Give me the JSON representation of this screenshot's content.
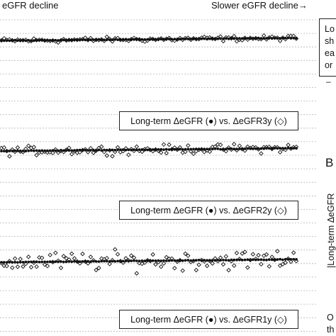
{
  "header": {
    "left": "eGFR decline",
    "right": "Slower eGFR decline→"
  },
  "side": {
    "callout_lines": [
      "Lo",
      "sh",
      "ea",
      "or"
    ],
    "tick": "–",
    "panel_letter": "B",
    "vertical_label": "|Long-term ΔeGFR",
    "bottom_lines": [
      "O",
      "th"
    ]
  },
  "chart_data": [
    {
      "type": "scatter",
      "legend": "Long-term ΔeGFR (●) vs. ΔeGFR3y (◇)",
      "series": [
        {
          "name": "Long-term ΔeGFR",
          "marker": "filled-circle",
          "trend": {
            "start": 0.3,
            "end": 0.7
          }
        },
        {
          "name": "ΔeGFR3y",
          "marker": "open-diamond",
          "spread": 0.35
        }
      ]
    },
    {
      "type": "scatter",
      "legend": "Long-term ΔeGFR (●) vs. ΔeGFR2y (◇)",
      "series": [
        {
          "name": "Long-term ΔeGFR",
          "marker": "filled-circle",
          "trend": {
            "start": 0.1,
            "end": 0.55
          }
        },
        {
          "name": "ΔeGFR2y",
          "marker": "open-diamond",
          "spread": 0.6
        }
      ]
    },
    {
      "type": "scatter",
      "legend": "Long-term ΔeGFR (●) vs. ΔeGFR1y (◇)",
      "series": [
        {
          "name": "Long-term ΔeGFR",
          "marker": "filled-circle",
          "trend": {
            "start": 0.0,
            "end": 0.45
          }
        },
        {
          "name": "ΔeGFR1y",
          "marker": "open-diamond",
          "spread": 1.3
        }
      ]
    }
  ],
  "colors": {
    "ink": "#111111",
    "grid": "#b5b5b5"
  }
}
